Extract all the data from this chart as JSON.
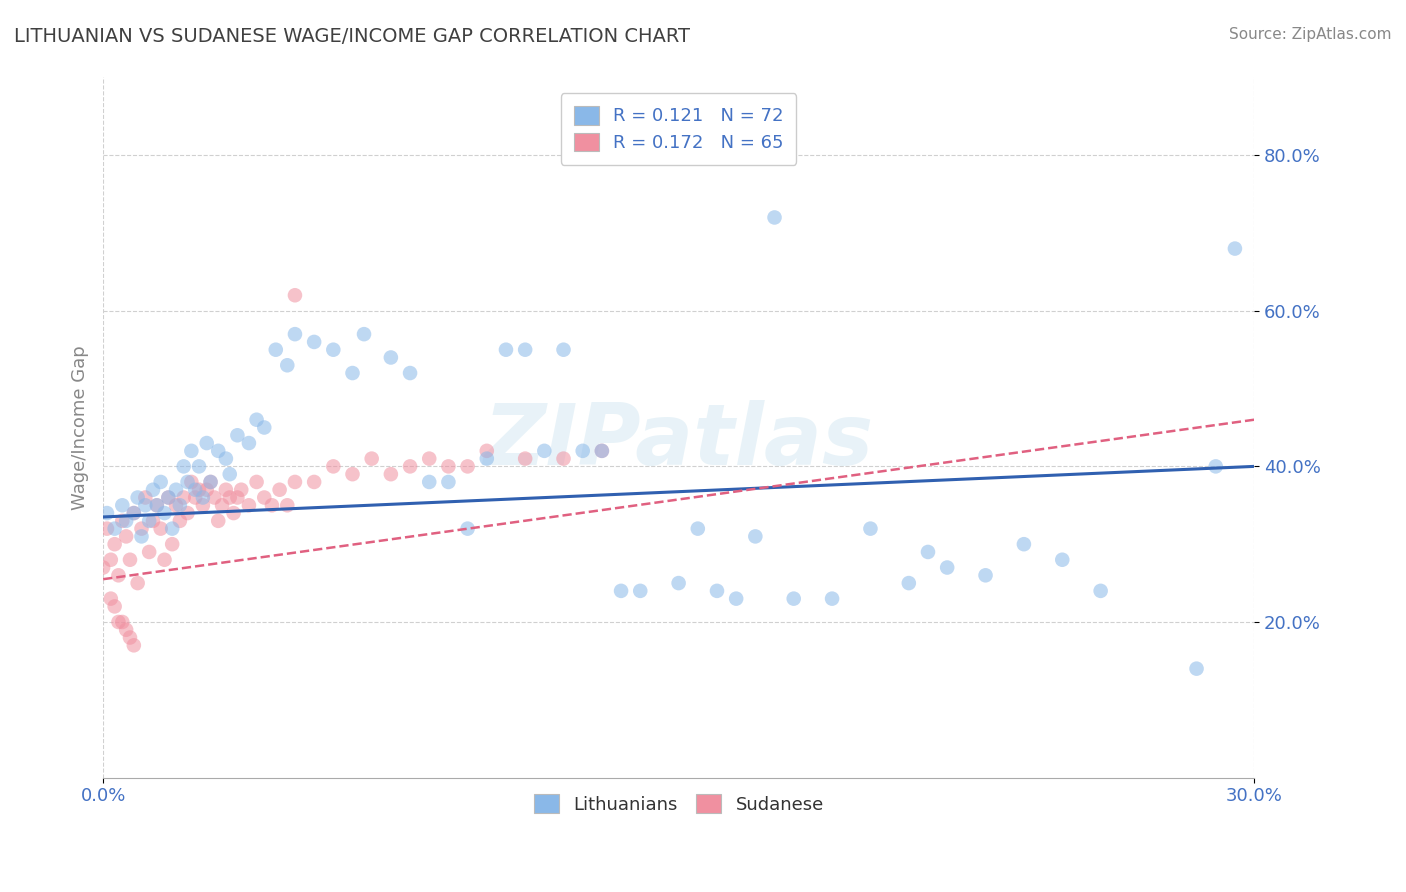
{
  "title": "LITHUANIAN VS SUDANESE WAGE/INCOME GAP CORRELATION CHART",
  "source": "Source: ZipAtlas.com",
  "ylabel": "Wage/Income Gap",
  "xlim": [
    0.0,
    0.3
  ],
  "ylim": [
    0.0,
    0.9
  ],
  "xticks": [
    0.0,
    0.3
  ],
  "xtick_labels": [
    "0.0%",
    "30.0%"
  ],
  "yticks": [
    0.2,
    0.4,
    0.6,
    0.8
  ],
  "ytick_labels": [
    "20.0%",
    "40.0%",
    "60.0%",
    "80.0%"
  ],
  "legend_entries": [
    {
      "label": "R = 0.121   N = 72",
      "color": "#a8c8f0"
    },
    {
      "label": "R = 0.172   N = 65",
      "color": "#f5b8c8"
    }
  ],
  "legend_bottom": [
    "Lithuanians",
    "Sudanese"
  ],
  "watermark": "ZIPatlas",
  "blue_scatter_x": [
    0.001,
    0.003,
    0.005,
    0.006,
    0.008,
    0.009,
    0.01,
    0.011,
    0.012,
    0.013,
    0.014,
    0.015,
    0.016,
    0.017,
    0.018,
    0.019,
    0.02,
    0.021,
    0.022,
    0.023,
    0.024,
    0.025,
    0.026,
    0.027,
    0.028,
    0.03,
    0.032,
    0.033,
    0.035,
    0.038,
    0.04,
    0.042,
    0.045,
    0.048,
    0.05,
    0.055,
    0.06,
    0.065,
    0.068,
    0.075,
    0.08,
    0.085,
    0.09,
    0.095,
    0.1,
    0.105,
    0.11,
    0.115,
    0.12,
    0.125,
    0.13,
    0.135,
    0.14,
    0.15,
    0.155,
    0.16,
    0.165,
    0.17,
    0.18,
    0.19,
    0.2,
    0.21,
    0.215,
    0.22,
    0.23,
    0.24,
    0.25,
    0.26,
    0.175,
    0.285,
    0.29,
    0.295
  ],
  "blue_scatter_y": [
    0.34,
    0.32,
    0.35,
    0.33,
    0.34,
    0.36,
    0.31,
    0.35,
    0.33,
    0.37,
    0.35,
    0.38,
    0.34,
    0.36,
    0.32,
    0.37,
    0.35,
    0.4,
    0.38,
    0.42,
    0.37,
    0.4,
    0.36,
    0.43,
    0.38,
    0.42,
    0.41,
    0.39,
    0.44,
    0.43,
    0.46,
    0.45,
    0.55,
    0.53,
    0.57,
    0.56,
    0.55,
    0.52,
    0.57,
    0.54,
    0.52,
    0.38,
    0.38,
    0.32,
    0.41,
    0.55,
    0.55,
    0.42,
    0.55,
    0.42,
    0.42,
    0.24,
    0.24,
    0.25,
    0.32,
    0.24,
    0.23,
    0.31,
    0.23,
    0.23,
    0.32,
    0.25,
    0.29,
    0.27,
    0.26,
    0.3,
    0.28,
    0.24,
    0.72,
    0.14,
    0.4,
    0.68
  ],
  "pink_scatter_x": [
    0.0,
    0.001,
    0.002,
    0.003,
    0.004,
    0.005,
    0.006,
    0.007,
    0.008,
    0.009,
    0.01,
    0.011,
    0.012,
    0.013,
    0.014,
    0.015,
    0.016,
    0.017,
    0.018,
    0.019,
    0.02,
    0.021,
    0.022,
    0.023,
    0.024,
    0.025,
    0.026,
    0.027,
    0.028,
    0.029,
    0.03,
    0.031,
    0.032,
    0.033,
    0.034,
    0.035,
    0.036,
    0.038,
    0.04,
    0.042,
    0.044,
    0.046,
    0.048,
    0.05,
    0.055,
    0.06,
    0.065,
    0.07,
    0.075,
    0.08,
    0.085,
    0.09,
    0.095,
    0.1,
    0.11,
    0.12,
    0.13,
    0.002,
    0.003,
    0.004,
    0.005,
    0.006,
    0.007,
    0.008,
    0.05
  ],
  "pink_scatter_y": [
    0.27,
    0.32,
    0.28,
    0.3,
    0.26,
    0.33,
    0.31,
    0.28,
    0.34,
    0.25,
    0.32,
    0.36,
    0.29,
    0.33,
    0.35,
    0.32,
    0.28,
    0.36,
    0.3,
    0.35,
    0.33,
    0.36,
    0.34,
    0.38,
    0.36,
    0.37,
    0.35,
    0.37,
    0.38,
    0.36,
    0.33,
    0.35,
    0.37,
    0.36,
    0.34,
    0.36,
    0.37,
    0.35,
    0.38,
    0.36,
    0.35,
    0.37,
    0.35,
    0.38,
    0.38,
    0.4,
    0.39,
    0.41,
    0.39,
    0.4,
    0.41,
    0.4,
    0.4,
    0.42,
    0.41,
    0.41,
    0.42,
    0.23,
    0.22,
    0.2,
    0.2,
    0.19,
    0.18,
    0.17,
    0.62
  ],
  "blue_line_x": [
    0.0,
    0.3
  ],
  "blue_line_y": [
    0.335,
    0.4
  ],
  "pink_line_x": [
    0.0,
    0.3
  ],
  "pink_line_y": [
    0.255,
    0.46
  ],
  "background_color": "#ffffff",
  "grid_color": "#d0d0d0",
  "blue_dot_color": "#8ab8e8",
  "pink_dot_color": "#f090a0",
  "blue_line_color": "#3060b0",
  "pink_line_color": "#e06080",
  "title_color": "#404040",
  "tick_label_color": "#4472c4"
}
